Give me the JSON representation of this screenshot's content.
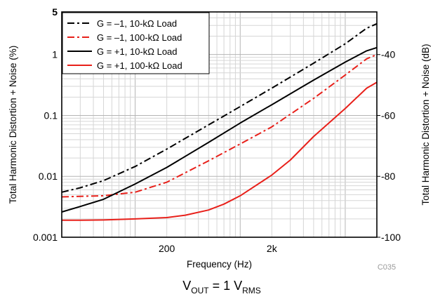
{
  "chart_data": {
    "type": "line",
    "x_scale": "log",
    "y_scale": "log",
    "xlim": [
      20,
      20000
    ],
    "ylim": [
      0.001,
      5
    ],
    "y2lim": [
      -100,
      -26
    ],
    "xlabel": "Frequency (Hz)",
    "ylabel": "Total Harmonic Distortion + Noise (%)",
    "y2label": "Total Harmonic Distortion + Noise (dB)",
    "x_ticks": [
      {
        "value": 200,
        "label": "200"
      },
      {
        "value": 2000,
        "label": "2k"
      }
    ],
    "y_ticks": [
      {
        "value": 0.001,
        "label": "0.001"
      },
      {
        "value": 0.01,
        "label": "0.01"
      },
      {
        "value": 0.1,
        "label": "0.1"
      },
      {
        "value": 1,
        "label": "1"
      },
      {
        "value": 5,
        "label": "5"
      }
    ],
    "y2_ticks": [
      {
        "value": -40,
        "label": "-40"
      },
      {
        "value": -60,
        "label": "-60"
      },
      {
        "value": -80,
        "label": "-80"
      },
      {
        "value": -100,
        "label": "-100"
      }
    ],
    "grid": true,
    "legend_position": "top-left",
    "code": "C035",
    "caption": {
      "main": "V",
      "sub1": "OUT",
      "mid": " = 1 V",
      "sub2": "RMS"
    },
    "series": [
      {
        "name": "G = –1, 10-kΩ Load",
        "color": "#000000",
        "dash": "dashdot",
        "x": [
          20,
          30,
          50,
          100,
          200,
          500,
          1000,
          2000,
          5000,
          10000,
          16000,
          20000
        ],
        "y": [
          0.0055,
          0.0065,
          0.0085,
          0.0145,
          0.028,
          0.07,
          0.14,
          0.28,
          0.72,
          1.5,
          2.7,
          3.2
        ]
      },
      {
        "name": "G = –1, 100-kΩ Load",
        "color": "#e8201a",
        "dash": "dashdot",
        "x": [
          20,
          30,
          50,
          100,
          200,
          500,
          1000,
          2000,
          5000,
          10000,
          16000,
          20000
        ],
        "y": [
          0.0046,
          0.0047,
          0.0048,
          0.0055,
          0.008,
          0.018,
          0.034,
          0.065,
          0.19,
          0.46,
          0.85,
          1.0
        ]
      },
      {
        "name": "G = +1, 10-kΩ Load",
        "color": "#000000",
        "dash": "solid",
        "x": [
          20,
          30,
          50,
          100,
          200,
          500,
          1000,
          2000,
          5000,
          10000,
          16000,
          20000
        ],
        "y": [
          0.0026,
          0.0032,
          0.0042,
          0.0075,
          0.014,
          0.036,
          0.075,
          0.15,
          0.38,
          0.75,
          1.15,
          1.3
        ]
      },
      {
        "name": "G = +1, 100-kΩ Load",
        "color": "#e8201a",
        "dash": "solid",
        "x": [
          20,
          30,
          50,
          100,
          200,
          300,
          500,
          700,
          1000,
          2000,
          3000,
          5000,
          10000,
          16000,
          20000
        ],
        "y": [
          0.0019,
          0.0019,
          0.00192,
          0.002,
          0.0021,
          0.0023,
          0.0028,
          0.0035,
          0.0048,
          0.0105,
          0.0185,
          0.045,
          0.13,
          0.28,
          0.35
        ]
      }
    ]
  }
}
